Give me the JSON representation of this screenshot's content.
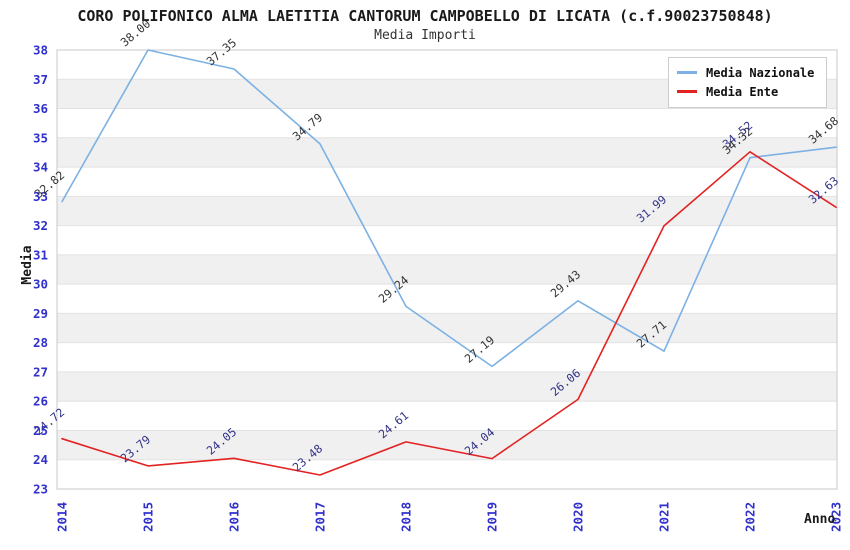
{
  "title": "CORO POLIFONICO ALMA LAETITIA CANTORUM CAMPOBELLO DI LICATA (c.f.90023750848)",
  "subtitle": "Media Importi",
  "chart_data": {
    "type": "line",
    "x": [
      2014,
      2015,
      2016,
      2017,
      2018,
      2019,
      2020,
      2021,
      2022,
      2023
    ],
    "xlabel": "Anno",
    "ylabel": "Media",
    "ylim": [
      23,
      38
    ],
    "ytick_step": 1,
    "grid": true,
    "legend_position": "top-right",
    "series": [
      {
        "name": "Media Nazionale",
        "color": "#7cb1e3",
        "label_color": "#333333",
        "values": [
          32.82,
          38.0,
          37.35,
          34.79,
          29.24,
          27.19,
          29.43,
          27.71,
          34.32,
          34.68
        ]
      },
      {
        "name": "Media Ente",
        "color": "#e32222",
        "label_color": "#333388",
        "values": [
          24.72,
          23.79,
          24.05,
          23.48,
          24.61,
          24.04,
          26.06,
          31.99,
          34.52,
          32.63
        ]
      }
    ]
  },
  "colors": {
    "axis_tick": "#3030cc",
    "stripe": "#f0f0f0",
    "gridline": "#e2e2e2",
    "border": "#c9c9c9",
    "title": "#1a1a1a",
    "subtitle": "#333333",
    "legend_text": "#101010"
  }
}
